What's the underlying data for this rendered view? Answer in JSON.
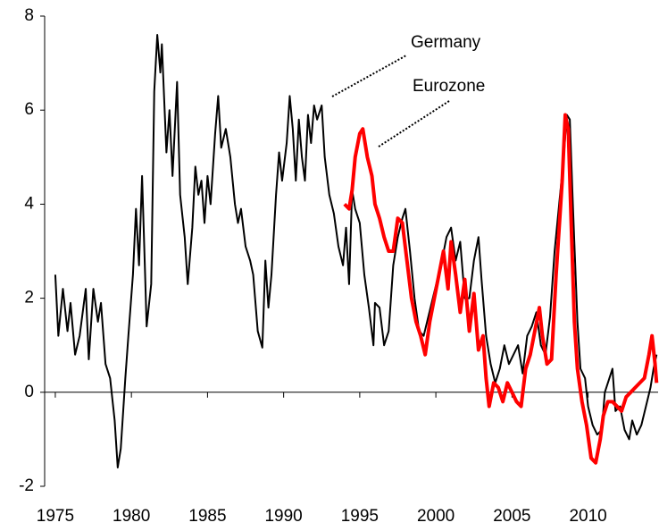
{
  "chart_data": {
    "type": "line",
    "series": [
      {
        "name": "Germany",
        "color": "#000000",
        "x": [
          1975.0,
          1975.2,
          1975.5,
          1975.8,
          1976.0,
          1976.3,
          1976.6,
          1977.0,
          1977.2,
          1977.5,
          1977.8,
          1978.0,
          1978.3,
          1978.6,
          1978.9,
          1979.1,
          1979.3,
          1979.6,
          1979.8,
          1980.1,
          1980.3,
          1980.5,
          1980.7,
          1980.9,
          1981.0,
          1981.3,
          1981.5,
          1981.7,
          1981.9,
          1982.0,
          1982.3,
          1982.5,
          1982.7,
          1983.0,
          1983.2,
          1983.5,
          1983.7,
          1984.0,
          1984.2,
          1984.4,
          1984.6,
          1984.8,
          1985.0,
          1985.2,
          1985.5,
          1985.7,
          1985.9,
          1986.2,
          1986.5,
          1986.8,
          1987.0,
          1987.2,
          1987.5,
          1987.8,
          1988.0,
          1988.3,
          1988.6,
          1988.8,
          1989.0,
          1989.2,
          1989.5,
          1989.7,
          1989.9,
          1990.2,
          1990.4,
          1990.6,
          1990.8,
          1991.0,
          1991.2,
          1991.4,
          1991.6,
          1991.8,
          1992.0,
          1992.2,
          1992.5,
          1992.7,
          1993.0,
          1993.3,
          1993.6,
          1993.9,
          1994.1,
          1994.3,
          1994.5,
          1994.7,
          1995.0,
          1995.3,
          1995.6,
          1995.9,
          1996.0,
          1996.3,
          1996.6,
          1996.9,
          1997.2,
          1997.5,
          1997.8,
          1998.0,
          1998.3,
          1998.6,
          1998.9,
          1999.2,
          1999.5,
          1999.8,
          2000.1,
          2000.4,
          2000.7,
          2001.0,
          2001.3,
          2001.6,
          2001.9,
          2002.2,
          2002.5,
          2002.8,
          2003.0,
          2003.3,
          2003.6,
          2003.9,
          2004.2,
          2004.5,
          2004.8,
          2005.1,
          2005.4,
          2005.7,
          2006.0,
          2006.3,
          2006.6,
          2006.9,
          2007.2,
          2007.5,
          2007.8,
          2008.1,
          2008.4,
          2008.6,
          2008.8,
          2009.0,
          2009.3,
          2009.5,
          2009.8,
          2010.0,
          2010.3,
          2010.6,
          2010.9,
          2011.1,
          2011.4,
          2011.6,
          2011.8,
          2012.1,
          2012.4,
          2012.7,
          2012.9,
          2013.2,
          2013.5,
          2013.8,
          2014.1,
          2014.3,
          2014.5
        ],
        "values": [
          2.5,
          1.2,
          2.2,
          1.3,
          1.9,
          0.8,
          1.2,
          2.2,
          0.7,
          2.2,
          1.5,
          1.9,
          0.6,
          0.3,
          -0.6,
          -1.6,
          -1.2,
          0.3,
          1.2,
          2.5,
          3.9,
          2.7,
          4.6,
          2.5,
          1.4,
          2.3,
          6.4,
          7.6,
          6.8,
          7.4,
          5.1,
          6.0,
          4.6,
          6.6,
          4.2,
          3.3,
          2.3,
          3.5,
          4.8,
          4.2,
          4.5,
          3.6,
          4.6,
          4.0,
          5.5,
          6.3,
          5.2,
          5.6,
          5.0,
          4.0,
          3.6,
          3.9,
          3.1,
          2.8,
          2.5,
          1.3,
          0.95,
          2.8,
          1.8,
          2.5,
          4.2,
          5.1,
          4.5,
          5.3,
          6.3,
          5.6,
          4.5,
          5.8,
          5.0,
          4.5,
          5.9,
          5.3,
          6.1,
          5.8,
          6.1,
          5.0,
          4.2,
          3.8,
          3.1,
          2.7,
          3.5,
          2.3,
          4.3,
          3.9,
          3.6,
          2.5,
          1.8,
          1.0,
          1.9,
          1.8,
          1.0,
          1.3,
          2.7,
          3.3,
          3.7,
          3.9,
          3.0,
          2.0,
          1.3,
          1.2,
          1.6,
          2.0,
          2.4,
          2.8,
          3.3,
          3.5,
          2.8,
          3.2,
          2.0,
          2.0,
          2.8,
          3.3,
          2.4,
          1.2,
          0.6,
          0.2,
          0.5,
          1.0,
          0.6,
          0.8,
          1.0,
          0.4,
          1.2,
          1.4,
          1.7,
          1.0,
          0.8,
          1.6,
          3.0,
          4.0,
          5.0,
          5.9,
          5.8,
          4.0,
          1.5,
          0.5,
          0.3,
          -0.3,
          -0.7,
          -0.9,
          -0.8,
          0.0,
          0.3,
          0.5,
          -0.4,
          -0.3,
          -0.8,
          -1.0,
          -0.6,
          -0.9,
          -0.7,
          -0.3,
          0.1,
          0.5,
          0.8
        ]
      },
      {
        "name": "Eurozone",
        "color": "#ff0000",
        "x": [
          1994.0,
          1994.3,
          1994.5,
          1994.7,
          1995.0,
          1995.2,
          1995.5,
          1995.8,
          1996.0,
          1996.3,
          1996.6,
          1996.9,
          1997.2,
          1997.5,
          1997.8,
          1998.1,
          1998.4,
          1998.7,
          1999.0,
          1999.3,
          1999.6,
          1999.9,
          2000.2,
          2000.5,
          2000.8,
          2001.0,
          2001.3,
          2001.6,
          2001.9,
          2002.2,
          2002.5,
          2002.8,
          2003.1,
          2003.3,
          2003.5,
          2003.8,
          2004.1,
          2004.4,
          2004.7,
          2005.0,
          2005.3,
          2005.6,
          2005.9,
          2006.2,
          2006.5,
          2006.8,
          2007.0,
          2007.3,
          2007.6,
          2007.9,
          2008.1,
          2008.3,
          2008.5,
          2008.7,
          2008.9,
          2009.1,
          2009.3,
          2009.6,
          2009.9,
          2010.2,
          2010.5,
          2010.8,
          2011.0,
          2011.3,
          2011.6,
          2011.9,
          2012.2,
          2012.5,
          2012.8,
          2013.1,
          2013.4,
          2013.7,
          2014.0,
          2014.2,
          2014.4,
          2014.5
        ],
        "values": [
          4.0,
          3.9,
          4.3,
          5.0,
          5.5,
          5.6,
          5.0,
          4.6,
          4.0,
          3.7,
          3.3,
          3.0,
          3.0,
          3.7,
          3.6,
          2.8,
          2.0,
          1.5,
          1.2,
          0.8,
          1.5,
          2.0,
          2.5,
          3.0,
          2.2,
          3.2,
          2.5,
          1.7,
          2.4,
          1.3,
          2.1,
          0.9,
          1.2,
          0.3,
          -0.3,
          0.2,
          0.1,
          -0.2,
          0.2,
          0.0,
          -0.2,
          -0.3,
          0.5,
          0.8,
          1.3,
          1.8,
          1.2,
          0.6,
          0.7,
          2.5,
          3.5,
          4.5,
          5.9,
          5.6,
          3.5,
          1.5,
          0.5,
          -0.2,
          -0.7,
          -1.4,
          -1.5,
          -1.0,
          -0.5,
          -0.2,
          -0.2,
          -0.3,
          -0.4,
          -0.1,
          0.0,
          0.1,
          0.2,
          0.3,
          0.8,
          1.2,
          0.6,
          0.2
        ]
      }
    ],
    "xlim": [
      1974.3,
      2014.6
    ],
    "xticks": [
      1975,
      1980,
      1985,
      1990,
      1995,
      2000,
      2005,
      2010
    ],
    "ylim": [
      -2,
      8
    ],
    "yticks": [
      -2,
      0,
      2,
      4,
      6,
      8
    ]
  }
}
